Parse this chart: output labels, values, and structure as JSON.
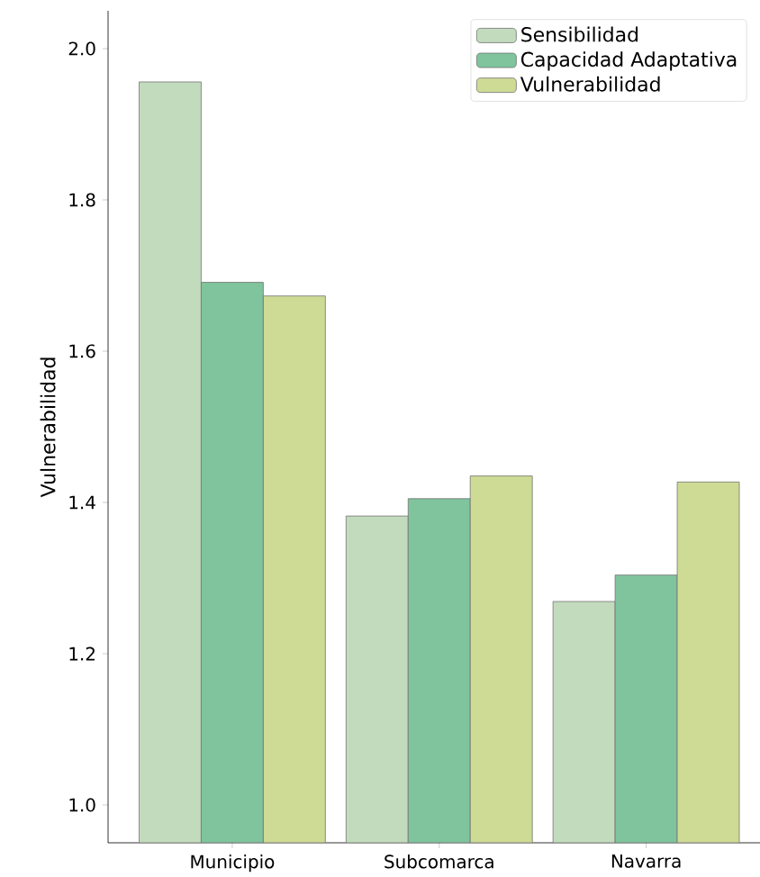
{
  "chart_data": {
    "type": "bar",
    "ylabel": "Vulnerabilidad",
    "categories": [
      "Municipio",
      "Subcomarca",
      "Navarra"
    ],
    "series": [
      {
        "name": "Sensibilidad",
        "color": "#c2dbbd",
        "values": [
          1.956,
          1.382,
          1.269
        ]
      },
      {
        "name": "Capacidad Adaptativa",
        "color": "#7fc49c",
        "values": [
          1.691,
          1.405,
          1.304
        ]
      },
      {
        "name": "Vulnerabilidad",
        "color": "#cddb95",
        "values": [
          1.673,
          1.435,
          1.427
        ]
      }
    ],
    "ylim": [
      0.95,
      2.05
    ],
    "yticks": [
      {
        "value": 1.0,
        "label": "1.0"
      },
      {
        "value": 1.2,
        "label": "1.2"
      },
      {
        "value": 1.4,
        "label": "1.4"
      },
      {
        "value": 1.6,
        "label": "1.6"
      },
      {
        "value": 1.8,
        "label": "1.8"
      },
      {
        "value": 2.0,
        "label": "2.0"
      }
    ],
    "legend": "top right",
    "grid": false
  }
}
